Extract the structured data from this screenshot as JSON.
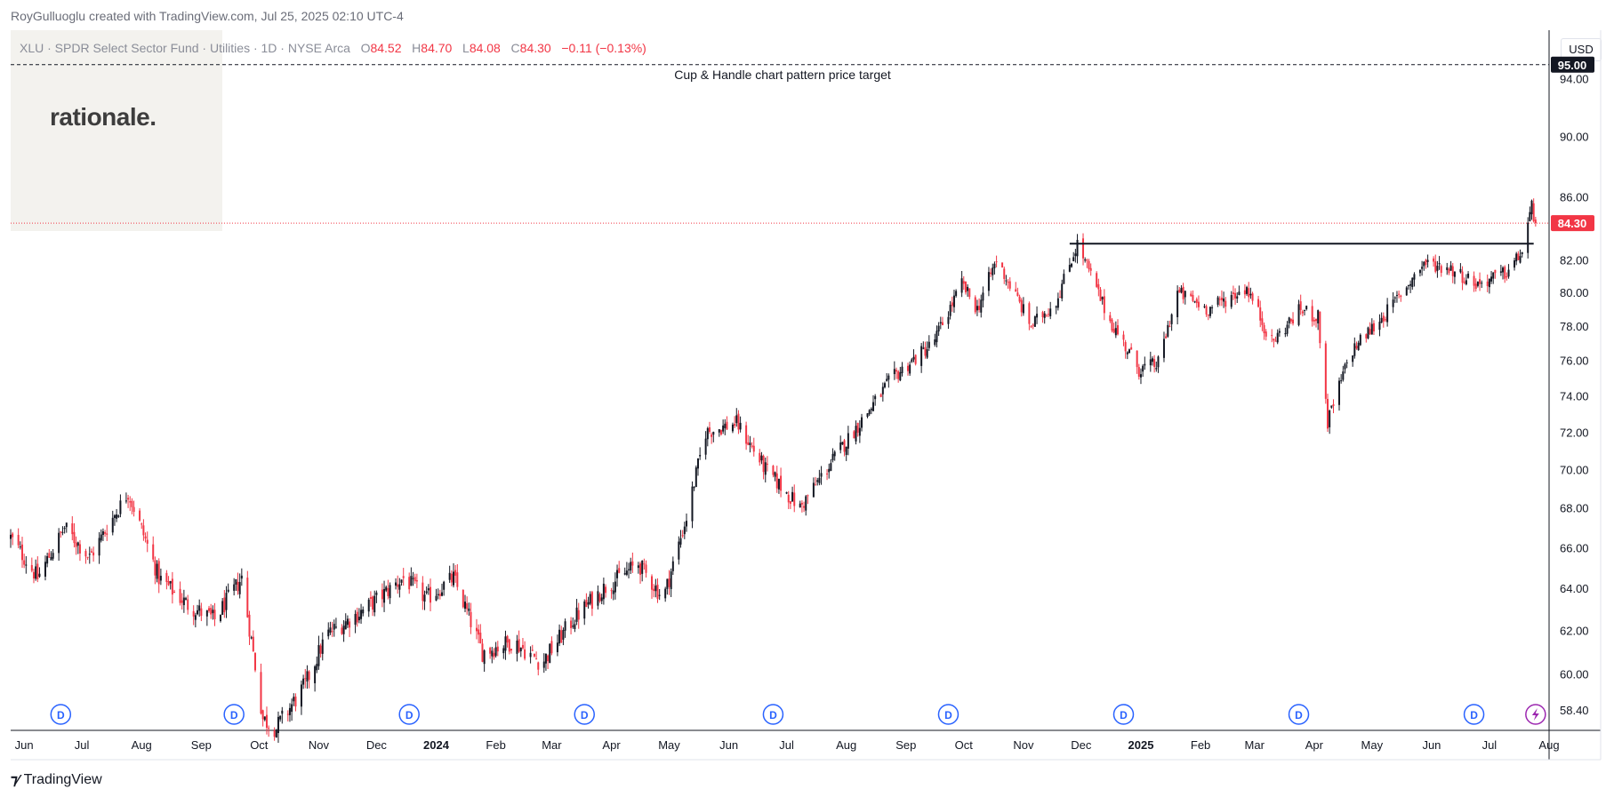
{
  "header": {
    "created_by": "RoyGulluoglu created with TradingView.com, Jul 25, 2025 02:10 UTC-4",
    "symbol": "XLU · SPDR Select Sector Fund · Utilities · 1D · NYSE Arca",
    "ohlc": {
      "o_label": "O",
      "o": "84.52",
      "h_label": "H",
      "h": "84.70",
      "l_label": "L",
      "l": "84.08",
      "c_label": "C",
      "c": "84.30",
      "change": "−0.11 (−0.13%)"
    }
  },
  "logo": {
    "text": "rationale."
  },
  "currency": "USD",
  "footer": {
    "brand": "TradingView",
    "icon": "tradingview-logo-icon"
  },
  "colors": {
    "up": "#131722",
    "down": "#f23645",
    "target_line": "#131722",
    "last_price": "#f23645"
  },
  "chart_data": {
    "type": "candlestick",
    "symbol": "XLU",
    "interval": "1D",
    "y_axis": {
      "ticks": [
        "58.40",
        "60.00",
        "62.00",
        "64.00",
        "66.00",
        "68.00",
        "70.00",
        "72.00",
        "74.00",
        "76.00",
        "78.00",
        "80.00",
        "82.00",
        "84.30",
        "86.00",
        "90.00",
        "94.00",
        "95.00"
      ],
      "ylim": [
        57.5,
        97.5
      ],
      "scale": "log"
    },
    "x_axis": {
      "ticks": [
        "Jun",
        "Jul",
        "Aug",
        "Sep",
        "Oct",
        "Nov",
        "Dec",
        "2024",
        "Feb",
        "Mar",
        "Apr",
        "May",
        "Jun",
        "Jul",
        "Aug",
        "Sep",
        "Oct",
        "Nov",
        "Dec",
        "2025",
        "Feb",
        "Mar",
        "Apr",
        "May",
        "Jun",
        "Jul",
        "Aug"
      ],
      "range": [
        "2023-05-25",
        "2025-08-01"
      ]
    },
    "approx_close_path": [
      {
        "date": "2023-05-25",
        "value": 66.5
      },
      {
        "date": "2023-06-08",
        "value": 64.5
      },
      {
        "date": "2023-06-22",
        "value": 67.0
      },
      {
        "date": "2023-07-05",
        "value": 65.5
      },
      {
        "date": "2023-07-25",
        "value": 68.8
      },
      {
        "date": "2023-08-10",
        "value": 64.5
      },
      {
        "date": "2023-08-25",
        "value": 63.2
      },
      {
        "date": "2023-09-08",
        "value": 62.5
      },
      {
        "date": "2023-09-22",
        "value": 64.5
      },
      {
        "date": "2023-10-03",
        "value": 58.0
      },
      {
        "date": "2023-10-10",
        "value": 57.6
      },
      {
        "date": "2023-10-25",
        "value": 59.5
      },
      {
        "date": "2023-11-05",
        "value": 61.8
      },
      {
        "date": "2023-11-25",
        "value": 63.0
      },
      {
        "date": "2023-12-15",
        "value": 64.5
      },
      {
        "date": "2023-12-27",
        "value": 63.5
      },
      {
        "date": "2024-01-10",
        "value": 64.5
      },
      {
        "date": "2024-01-25",
        "value": 61.0
      },
      {
        "date": "2024-02-10",
        "value": 61.5
      },
      {
        "date": "2024-02-25",
        "value": 60.5
      },
      {
        "date": "2024-03-12",
        "value": 62.5
      },
      {
        "date": "2024-03-28",
        "value": 64.0
      },
      {
        "date": "2024-04-15",
        "value": 65.2
      },
      {
        "date": "2024-04-28",
        "value": 63.5
      },
      {
        "date": "2024-05-10",
        "value": 67.5
      },
      {
        "date": "2024-05-20",
        "value": 72.0
      },
      {
        "date": "2024-06-05",
        "value": 72.5
      },
      {
        "date": "2024-06-20",
        "value": 70.0
      },
      {
        "date": "2024-07-08",
        "value": 68.0
      },
      {
        "date": "2024-07-25",
        "value": 70.5
      },
      {
        "date": "2024-08-10",
        "value": 72.8
      },
      {
        "date": "2024-08-25",
        "value": 75.0
      },
      {
        "date": "2024-09-15",
        "value": 77.0
      },
      {
        "date": "2024-09-30",
        "value": 80.5
      },
      {
        "date": "2024-10-08",
        "value": 79.0
      },
      {
        "date": "2024-10-18",
        "value": 82.0
      },
      {
        "date": "2024-11-05",
        "value": 78.0
      },
      {
        "date": "2024-11-18",
        "value": 79.5
      },
      {
        "date": "2024-11-29",
        "value": 83.0
      },
      {
        "date": "2024-12-15",
        "value": 78.5
      },
      {
        "date": "2024-12-31",
        "value": 75.5
      },
      {
        "date": "2025-01-10",
        "value": 75.8
      },
      {
        "date": "2025-01-20",
        "value": 80.0
      },
      {
        "date": "2025-02-05",
        "value": 79.0
      },
      {
        "date": "2025-02-25",
        "value": 80.3
      },
      {
        "date": "2025-03-10",
        "value": 77.0
      },
      {
        "date": "2025-03-25",
        "value": 79.0
      },
      {
        "date": "2025-04-03",
        "value": 78.5
      },
      {
        "date": "2025-04-08",
        "value": 72.5
      },
      {
        "date": "2025-04-20",
        "value": 76.5
      },
      {
        "date": "2025-05-10",
        "value": 79.0
      },
      {
        "date": "2025-05-28",
        "value": 81.8
      },
      {
        "date": "2025-06-10",
        "value": 81.5
      },
      {
        "date": "2025-06-25",
        "value": 80.5
      },
      {
        "date": "2025-07-10",
        "value": 81.2
      },
      {
        "date": "2025-07-18",
        "value": 82.5
      },
      {
        "date": "2025-07-23",
        "value": 85.3
      },
      {
        "date": "2025-07-25",
        "value": 84.3
      }
    ],
    "resistance_line": {
      "start": "2024-11-25",
      "end": "2025-07-24",
      "value": 83.0
    },
    "target": {
      "value": 95.0,
      "label": "95.00",
      "annotation": "Cup & Handle chart pattern price target"
    },
    "last_price": {
      "value": 84.3,
      "label": "84.30"
    },
    "dividend_markers": [
      "2023-06-20",
      "2023-09-18",
      "2023-12-18",
      "2024-03-18",
      "2024-06-24",
      "2024-09-23",
      "2024-12-23",
      "2025-03-24",
      "2025-06-23"
    ],
    "dividend_label": "D",
    "earnings_marker": "2025-07-25"
  }
}
